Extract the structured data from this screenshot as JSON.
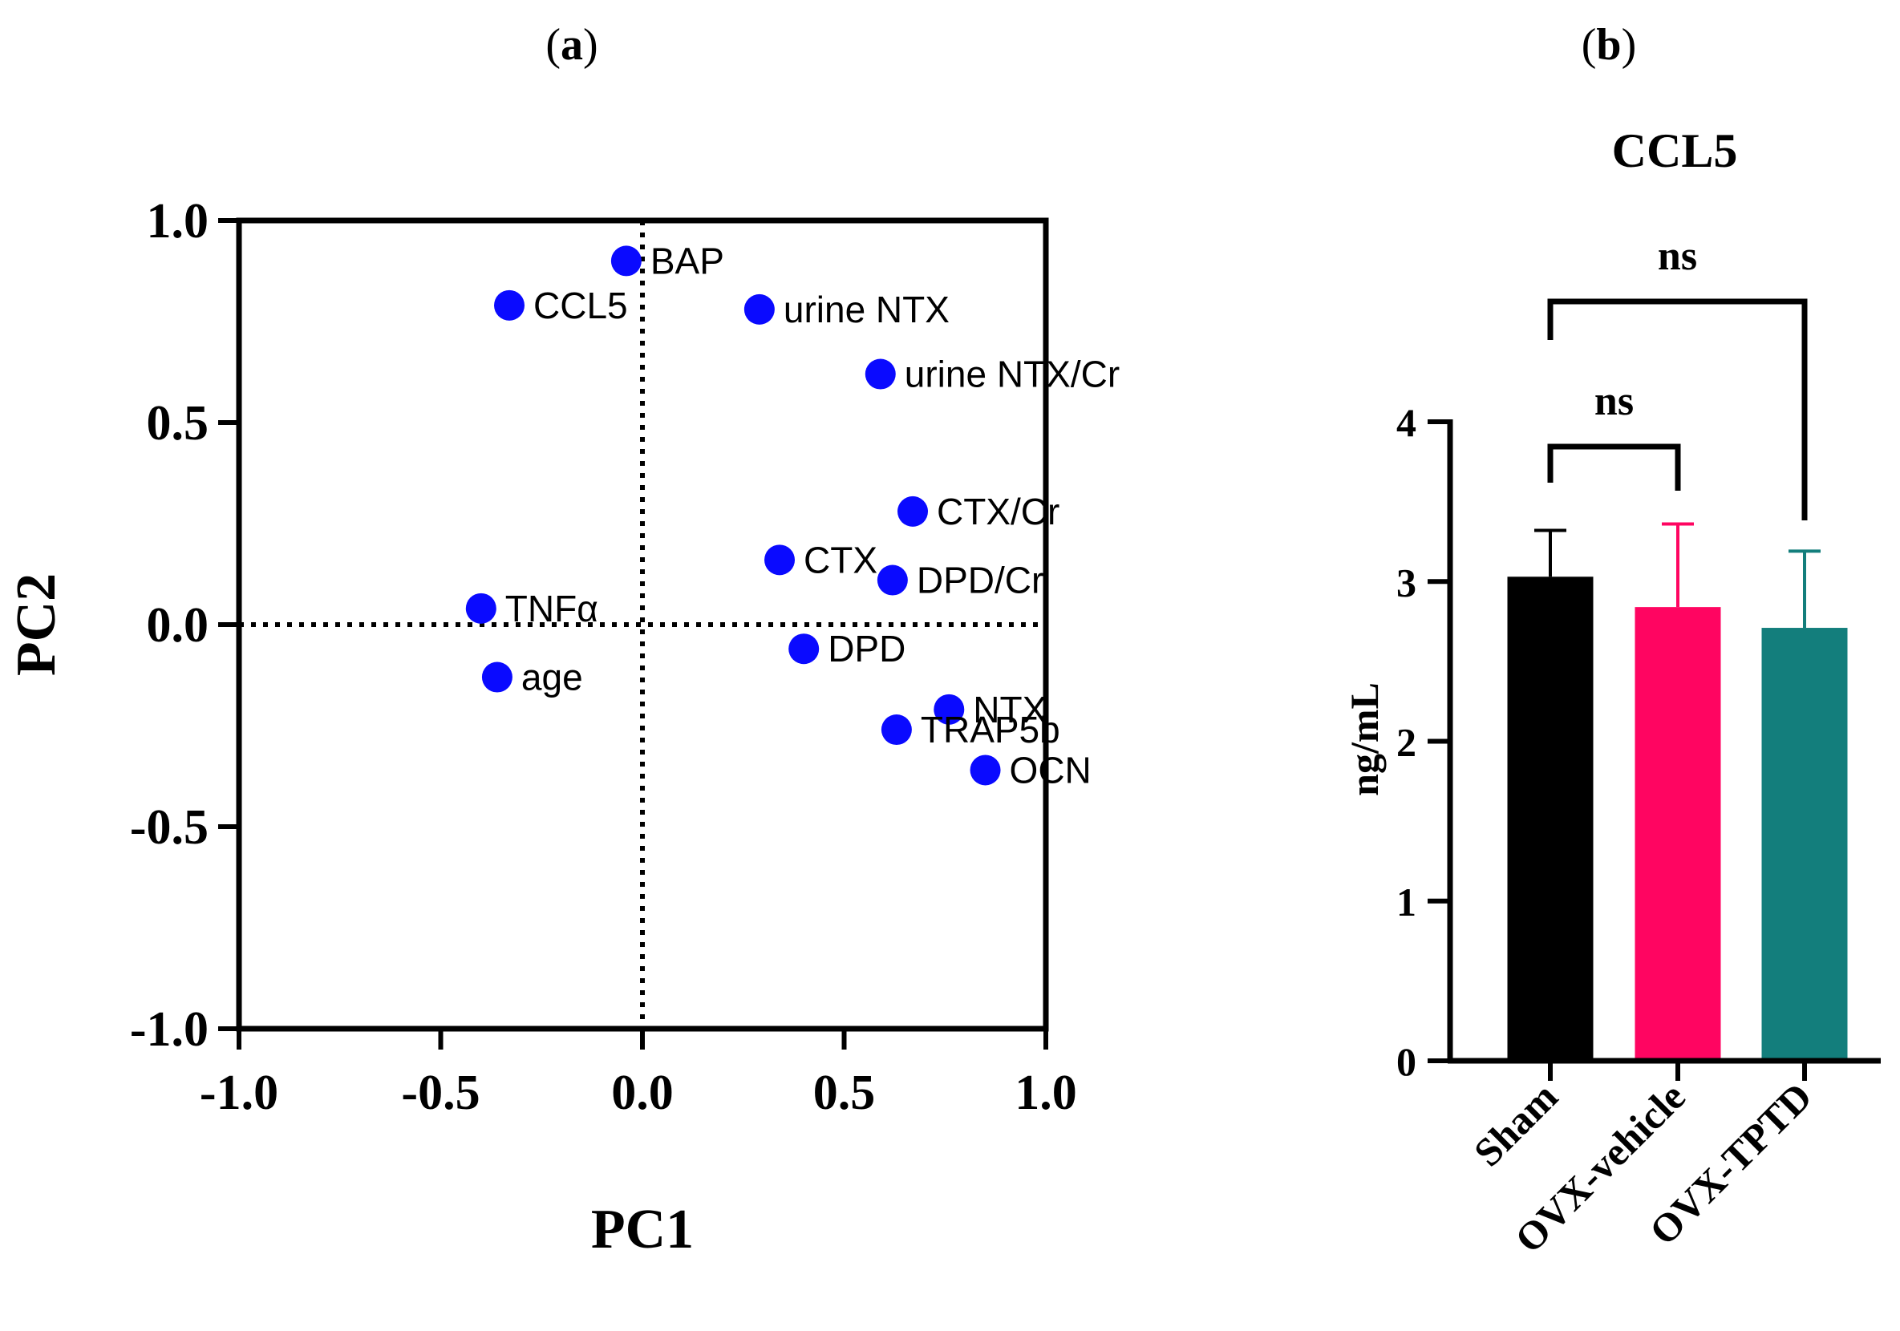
{
  "panels": {
    "a": {
      "label_open": "(",
      "label_letter": "a",
      "label_close": ")"
    },
    "b": {
      "label_open": "(",
      "label_letter": "b",
      "label_close": ")"
    }
  },
  "chart_data": [
    {
      "type": "scatter",
      "title": "",
      "xlabel": "PC1",
      "ylabel": "PC2",
      "xlim": [
        -1.0,
        1.0
      ],
      "ylim": [
        -1.0,
        1.0
      ],
      "xticks": [
        "-1.0",
        "-0.5",
        "0.0",
        "0.5",
        "1.0"
      ],
      "yticks": [
        "1.0",
        "0.5",
        "0.0",
        "-0.5",
        "-1.0"
      ],
      "reference_lines": {
        "x": 0.0,
        "y": 0.0,
        "style": "dotted"
      },
      "point_color": "#0a0aff",
      "points": [
        {
          "label": "BAP",
          "x": -0.04,
          "y": 0.9
        },
        {
          "label": "CCL5",
          "x": -0.33,
          "y": 0.79
        },
        {
          "label": "urine NTX",
          "x": 0.29,
          "y": 0.78
        },
        {
          "label": "urine NTX/Cr",
          "x": 0.59,
          "y": 0.62
        },
        {
          "label": "CTX/Cr",
          "x": 0.67,
          "y": 0.28
        },
        {
          "label": "CTX",
          "x": 0.34,
          "y": 0.16
        },
        {
          "label": "DPD/Cr",
          "x": 0.62,
          "y": 0.11
        },
        {
          "label": "TNFα",
          "x": -0.4,
          "y": 0.04
        },
        {
          "label": "DPD",
          "x": 0.4,
          "y": -0.06
        },
        {
          "label": "age",
          "x": -0.36,
          "y": -0.13
        },
        {
          "label": "NTX",
          "x": 0.76,
          "y": -0.21
        },
        {
          "label": "TRAP5b",
          "x": 0.63,
          "y": -0.26
        },
        {
          "label": "OCN",
          "x": 0.85,
          "y": -0.36
        }
      ]
    },
    {
      "type": "bar",
      "title": "CCL5",
      "xlabel": "",
      "ylabel": "ng/mL",
      "ylim": [
        0,
        4
      ],
      "yticks": [
        "0",
        "1",
        "2",
        "3",
        "4"
      ],
      "categories": [
        "Sham",
        "OVX-vehicle",
        "OVX-TPTD"
      ],
      "values": [
        3.03,
        2.84,
        2.71
      ],
      "errors": [
        0.29,
        0.52,
        0.48
      ],
      "colors": [
        "#000000",
        "#ff0561",
        "#137e7c"
      ],
      "significance": [
        {
          "from": "Sham",
          "to": "OVX-vehicle",
          "label": "ns"
        },
        {
          "from": "Sham",
          "to": "OVX-TPTD",
          "label": "ns"
        }
      ]
    }
  ]
}
